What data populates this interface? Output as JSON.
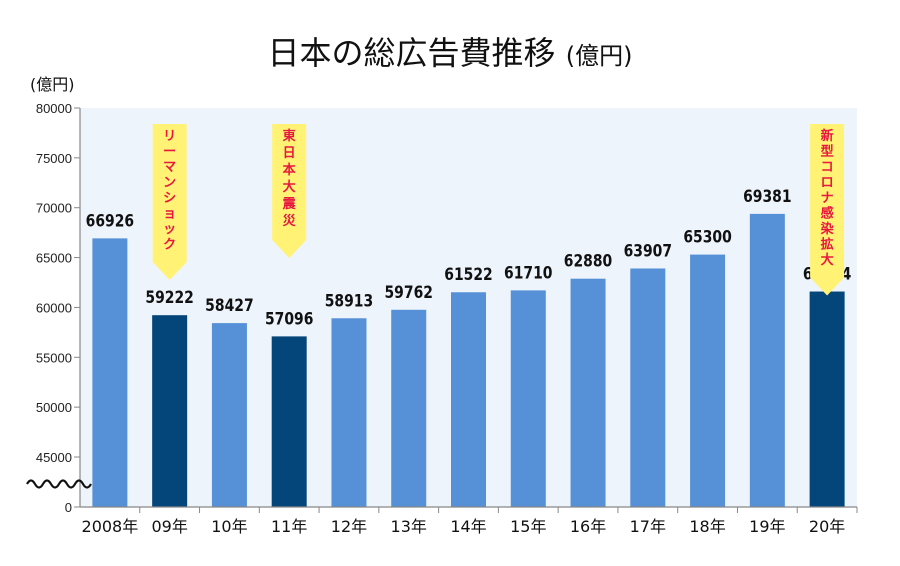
{
  "chart_data": {
    "type": "bar",
    "title": "日本の総広告費推移",
    "title_unit": "(億円)",
    "ylabel": "(億円)",
    "xlabel": "",
    "categories": [
      "2008年",
      "09年",
      "10年",
      "11年",
      "12年",
      "13年",
      "14年",
      "15年",
      "16年",
      "17年",
      "18年",
      "19年",
      "20年"
    ],
    "values": [
      66926,
      59222,
      58427,
      57096,
      58913,
      59762,
      61522,
      61710,
      62880,
      63907,
      65300,
      69381,
      61594
    ],
    "highlight": [
      false,
      true,
      false,
      true,
      false,
      false,
      false,
      false,
      false,
      false,
      false,
      false,
      true
    ],
    "yticks": [
      0,
      45000,
      50000,
      55000,
      60000,
      65000,
      70000,
      75000,
      80000
    ],
    "ylim": [
      0,
      80000
    ],
    "axis_break": [
      0,
      45000
    ],
    "grid": false,
    "annotations": [
      {
        "category": "09年",
        "text": "リーマンショック"
      },
      {
        "category": "11年",
        "text": "東日本大震災"
      },
      {
        "category": "20年",
        "text": "新型コロナ感染拡大"
      }
    ],
    "colors": {
      "bar": "#5690d6",
      "highlight": "#05467a",
      "plot_bg": "#eef4fc",
      "annotation_bg": "#fff275",
      "annotation_text": "#e8173f"
    }
  }
}
